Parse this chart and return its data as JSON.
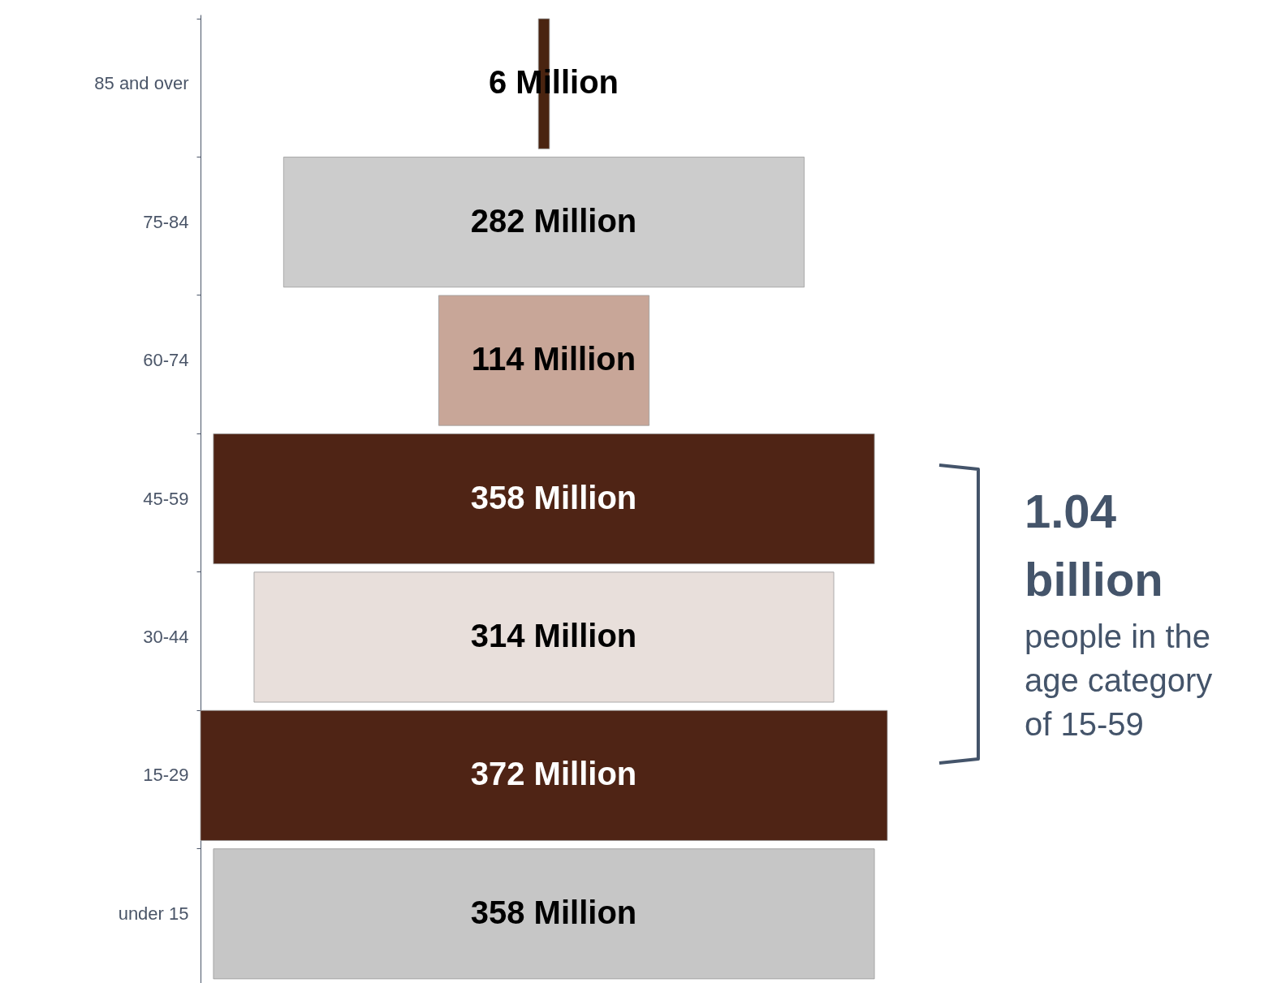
{
  "chart_data": {
    "type": "other",
    "categories": [
      "85 and over",
      "75-84",
      "60-74",
      "45-59",
      "30-44",
      "15-29",
      "under 15"
    ],
    "values": [
      6,
      282,
      114,
      358,
      314,
      372,
      358
    ],
    "value_labels": [
      "6 Million",
      "282 Million",
      "114 Million",
      "358 Million",
      "314 Million",
      "372 Million",
      "358 Million"
    ],
    "colors": [
      "#4a2410",
      "#cccccc",
      "#c8a698",
      "#4f2415",
      "#e8dfdb",
      "#4f2415",
      "#c6c6c6"
    ],
    "annotations": [
      "1.04 billion",
      "people in the age category of 15-59"
    ]
  }
}
